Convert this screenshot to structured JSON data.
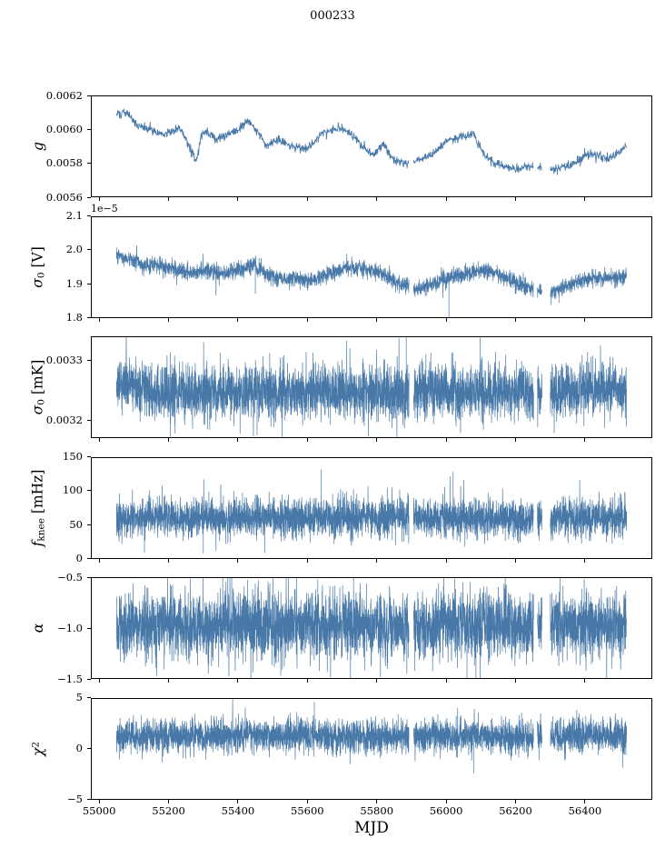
{
  "title": "000233",
  "xlabel": "MJD",
  "style": {
    "line_color": "#4878a8",
    "axis_color": "#000000",
    "background": "#ffffff"
  },
  "axis": {
    "xlim": [
      54976,
      56594
    ],
    "xticks": [
      55000,
      55200,
      55400,
      55600,
      55800,
      56000,
      56200,
      56400
    ],
    "xtick_labels": [
      "55000",
      "55200",
      "55400",
      "55600",
      "55800",
      "56000",
      "56200",
      "56400"
    ],
    "data_x_start": 55050,
    "data_x_end": 56520,
    "gaps": [
      [
        55893,
        55906
      ],
      [
        56252,
        56263
      ],
      [
        56276,
        56300
      ]
    ]
  },
  "chart_data": [
    {
      "id": "g",
      "type": "line",
      "ylabel": "g",
      "ylabel_parts": [
        {
          "t": "g",
          "style": "italic"
        }
      ],
      "ylim": [
        0.0056,
        0.0062
      ],
      "yticks": [
        0.0056,
        0.0058,
        0.006,
        0.0062
      ],
      "ytick_labels": [
        "0.0056",
        "0.0058",
        "0.0060",
        "0.0062"
      ],
      "offset_label": "",
      "n_points": 1400,
      "seed": 101,
      "noise_sd": 1.3e-05,
      "spike_prob": 0,
      "spike_scale": 0,
      "clamp": [
        0.00562,
        0.00618
      ],
      "line_width": 0.9,
      "trend": {
        "x": [
          55050,
          55080,
          55110,
          55150,
          55190,
          55230,
          55255,
          55280,
          55295,
          55310,
          55335,
          55365,
          55400,
          55430,
          55455,
          55480,
          55520,
          55560,
          55600,
          55640,
          55690,
          55730,
          55760,
          55790,
          55820,
          55850,
          55880,
          55920,
          55960,
          56000,
          56040,
          56080,
          56110,
          56140,
          56170,
          56210,
          56260,
          56310,
          56360,
          56410,
          56450,
          56480,
          56520
        ],
        "y": [
          0.00609,
          0.0061,
          0.00602,
          0.006,
          0.00597,
          0.00601,
          0.00592,
          0.00581,
          0.00597,
          0.00599,
          0.00594,
          0.00597,
          0.006,
          0.00605,
          0.00599,
          0.00591,
          0.00594,
          0.0059,
          0.00589,
          0.00597,
          0.00601,
          0.00597,
          0.0059,
          0.00585,
          0.00591,
          0.00582,
          0.0058,
          0.00582,
          0.00585,
          0.00593,
          0.00596,
          0.00597,
          0.00585,
          0.0058,
          0.00578,
          0.00577,
          0.00578,
          0.00576,
          0.00579,
          0.00586,
          0.00583,
          0.00584,
          0.0059
        ]
      },
      "vspikes": []
    },
    {
      "id": "sigma0_v",
      "type": "line",
      "ylabel": "σ₀ [V]",
      "ylabel_parts": [
        {
          "t": "σ",
          "style": "italic"
        },
        {
          "t": "0",
          "style": "sub"
        },
        {
          "t": " [V]",
          "style": "normal"
        }
      ],
      "ylim": [
        1.8,
        2.1
      ],
      "yticks": [
        1.8,
        1.9,
        2.0,
        2.1
      ],
      "ytick_labels": [
        "1.8",
        "1.9",
        "2.0",
        "2.1"
      ],
      "offset_label": "1e−5",
      "n_points": 3200,
      "seed": 202,
      "noise_sd": 0.012,
      "spike_prob": 0.004,
      "spike_scale": 0.06,
      "clamp": [
        1.802,
        2.09
      ],
      "line_width": 0.7,
      "trend": {
        "x": [
          55050,
          55090,
          55130,
          55170,
          55210,
          55260,
          55310,
          55360,
          55410,
          55440,
          55470,
          55510,
          55560,
          55610,
          55660,
          55710,
          55760,
          55810,
          55860,
          55910,
          55960,
          56010,
          56060,
          56110,
          56160,
          56210,
          56260,
          56310,
          56360,
          56410,
          56460,
          56520
        ],
        "y": [
          1.985,
          1.97,
          1.96,
          1.955,
          1.945,
          1.935,
          1.94,
          1.935,
          1.945,
          1.955,
          1.935,
          1.92,
          1.915,
          1.91,
          1.93,
          1.95,
          1.945,
          1.935,
          1.905,
          1.885,
          1.9,
          1.92,
          1.93,
          1.94,
          1.925,
          1.9,
          1.88,
          1.875,
          1.9,
          1.915,
          1.92,
          1.92
        ]
      },
      "vspikes": [
        [
          56008,
          1.803
        ],
        [
          55450,
          1.872
        ],
        [
          56325,
          1.845
        ]
      ]
    },
    {
      "id": "sigma0_mk",
      "type": "line",
      "ylabel": "σ₀ [mK]",
      "ylabel_parts": [
        {
          "t": "σ",
          "style": "italic"
        },
        {
          "t": "0",
          "style": "sub"
        },
        {
          "t": " [mK]",
          "style": "normal"
        }
      ],
      "ylim": [
        0.00317,
        0.00334
      ],
      "yticks": [
        0.0032,
        0.0033
      ],
      "ytick_labels": [
        "0.0032",
        "0.0033"
      ],
      "offset_label": "",
      "n_points": 4200,
      "seed": 303,
      "noise_sd": 2.2e-05,
      "spike_prob": 0.012,
      "spike_scale": 7e-05,
      "clamp": [
        0.003168,
        0.003341
      ],
      "line_width": 0.7,
      "trend": {
        "x": [
          55050,
          55090,
          55140,
          55200,
          55300,
          55400,
          55500,
          55600,
          55700,
          55800,
          55900,
          56000,
          56100,
          56200,
          56300,
          56400,
          56470,
          56520
        ],
        "y": [
          0.003262,
          0.003255,
          0.00325,
          0.003247,
          0.003246,
          0.003245,
          0.003246,
          0.003247,
          0.003247,
          0.003246,
          0.003247,
          0.003248,
          0.003247,
          0.003246,
          0.003248,
          0.003252,
          0.003254,
          0.003251
        ]
      },
      "vspikes": [
        [
          55885,
          0.003338
        ],
        [
          56098,
          0.003338
        ],
        [
          55205,
          0.003172
        ],
        [
          55455,
          0.003175
        ]
      ]
    },
    {
      "id": "fknee",
      "type": "line",
      "ylabel": "fₖₙₑₑ [mHz]",
      "ylabel_parts": [
        {
          "t": "f",
          "style": "italic"
        },
        {
          "t": "knee",
          "style": "sub"
        },
        {
          "t": " [mHz]",
          "style": "normal"
        }
      ],
      "ylim": [
        0,
        150
      ],
      "yticks": [
        0,
        50,
        100,
        150
      ],
      "ytick_labels": [
        "0",
        "50",
        "100",
        "150"
      ],
      "offset_label": "",
      "n_points": 4200,
      "seed": 404,
      "noise_sd": 13.5,
      "spike_prob": 0.015,
      "spike_scale": 45,
      "clamp": [
        3,
        147
      ],
      "line_width": 0.7,
      "trend": {
        "x": [
          55050,
          55400,
          55800,
          56200,
          56520
        ],
        "y": [
          61,
          60,
          62,
          60,
          61
        ]
      },
      "vspikes": [
        [
          55640,
          132
        ],
        [
          56020,
          128
        ],
        [
          55300,
          8
        ]
      ]
    },
    {
      "id": "alpha",
      "type": "line",
      "ylabel": "α",
      "ylabel_parts": [
        {
          "t": "α",
          "style": "italic"
        }
      ],
      "ylim": [
        -1.5,
        -0.5
      ],
      "yticks": [
        -1.5,
        -1.0,
        -0.5
      ],
      "ytick_labels": [
        "−1.5",
        "−1.0",
        "−0.5"
      ],
      "offset_label": "",
      "n_points": 4200,
      "seed": 505,
      "noise_sd": 0.165,
      "spike_prob": 0.012,
      "spike_scale": 0.4,
      "clamp": [
        -1.53,
        -0.5
      ],
      "line_width": 0.7,
      "trend": {
        "x": [
          55050,
          56520
        ],
        "y": [
          -0.98,
          -0.98
        ]
      },
      "vspikes": [
        [
          55630,
          -0.52
        ],
        [
          56060,
          -1.5
        ]
      ]
    },
    {
      "id": "chi2",
      "type": "line",
      "ylabel": "χ²",
      "ylabel_parts": [
        {
          "t": "χ",
          "style": "italic"
        },
        {
          "t": "2",
          "style": "sup"
        }
      ],
      "ylim": [
        -5,
        5
      ],
      "yticks": [
        -5,
        0,
        5
      ],
      "ytick_labels": [
        "−5",
        "0",
        "5"
      ],
      "offset_label": "",
      "n_points": 4200,
      "seed": 606,
      "noise_sd": 0.78,
      "spike_prob": 0.01,
      "spike_scale": 2.0,
      "clamp": [
        -3.4,
        4.9
      ],
      "line_width": 0.7,
      "trend": {
        "x": [
          55050,
          55250,
          55500,
          55750,
          56000,
          56250,
          56520
        ],
        "y": [
          1.4,
          1.2,
          1.35,
          1.25,
          1.3,
          1.15,
          1.3
        ]
      },
      "vspikes": [
        [
          55620,
          4.6
        ],
        [
          56080,
          -2.4
        ]
      ]
    }
  ]
}
